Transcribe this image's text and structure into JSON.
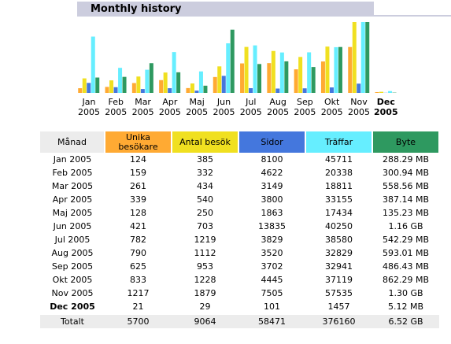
{
  "title": "Monthly history",
  "chart_data": {
    "type": "bar",
    "category_header": "Månad",
    "total_row_label": "Totalt",
    "bold_category": 11,
    "categories": [
      "Jan 2005",
      "Feb 2005",
      "Mar 2005",
      "Apr 2005",
      "Maj 2005",
      "Jun 2005",
      "Jul 2005",
      "Aug 2005",
      "Sep 2005",
      "Okt 2005",
      "Nov 2005",
      "Dec 2005"
    ],
    "series": [
      {
        "name": "Unika besökare",
        "color": "#ffaa33",
        "values": [
          124,
          159,
          261,
          339,
          128,
          421,
          782,
          790,
          625,
          833,
          1217,
          21
        ],
        "total": 5700
      },
      {
        "name": "Antal besök",
        "color": "#f0e020",
        "values": [
          385,
          332,
          434,
          540,
          250,
          703,
          1219,
          1112,
          953,
          1228,
          1879,
          29
        ],
        "total": 9064
      },
      {
        "name": "Sidor",
        "color": "#4477dd",
        "values": [
          8100,
          4622,
          3149,
          3800,
          1863,
          13835,
          3829,
          3520,
          3702,
          4445,
          7505,
          101
        ],
        "total": 58471
      },
      {
        "name": "Träffar",
        "color": "#66eeff",
        "values": [
          45711,
          20338,
          18811,
          33155,
          17434,
          40250,
          38580,
          32829,
          32941,
          37119,
          57535,
          1457
        ],
        "total": 376160
      },
      {
        "name": "Byte",
        "color": "#2e9960",
        "values": [
          288.29,
          300.94,
          558.56,
          387.14,
          135.23,
          1187.84,
          542.29,
          593.01,
          486.43,
          862.29,
          1331.2,
          5.12
        ],
        "value_labels": [
          "288.29 MB",
          "300.94 MB",
          "558.56 MB",
          "387.14 MB",
          "135.23 MB",
          "1.16 GB",
          "542.29 MB",
          "593.01 MB",
          "486.43 MB",
          "862.29 MB",
          "1.30 GB",
          "5.12 MB"
        ],
        "total": 6676.48,
        "total_label": "6.52 GB"
      }
    ]
  }
}
